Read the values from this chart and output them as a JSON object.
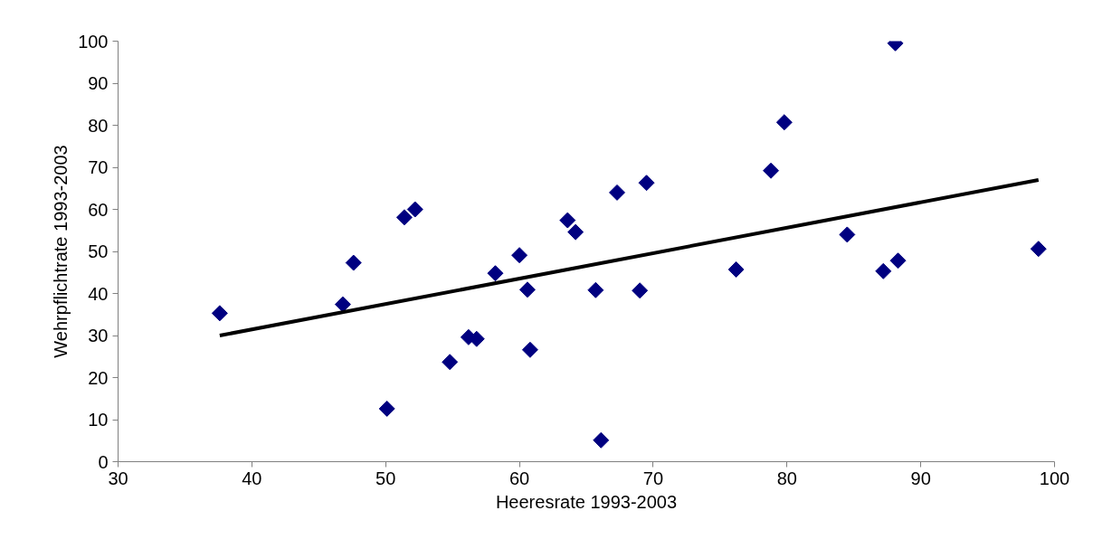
{
  "chart_data": {
    "type": "scatter",
    "xlabel": "Heeresrate 1993-2003",
    "ylabel": "Wehrpflichtrate 1993-2003",
    "xlim": [
      30,
      100
    ],
    "xticks": [
      30,
      40,
      50,
      60,
      70,
      80,
      90,
      100
    ],
    "ylim": [
      0,
      100
    ],
    "yticks": [
      0,
      10,
      20,
      30,
      40,
      50,
      60,
      70,
      80,
      90,
      100
    ],
    "grid": false,
    "series": [
      {
        "marker": "diamond",
        "color": "#000080",
        "x": [
          37.6,
          46.8,
          47.6,
          50.1,
          51.4,
          52.2,
          54.8,
          56.2,
          56.8,
          58.2,
          60.0,
          60.6,
          60.8,
          63.6,
          64.2,
          65.7,
          66.1,
          67.3,
          69.0,
          69.5,
          76.2,
          78.8,
          79.8,
          84.5,
          87.2,
          88.1,
          88.3,
          98.8
        ],
        "values": [
          35.3,
          37.4,
          47.3,
          12.6,
          58.1,
          60.0,
          23.7,
          29.6,
          29.2,
          44.8,
          49.1,
          40.9,
          26.6,
          57.4,
          54.6,
          40.8,
          5.1,
          64.0,
          40.7,
          66.3,
          45.7,
          69.2,
          80.7,
          54.0,
          45.3,
          99.5,
          47.8,
          50.6
        ]
      },
      {
        "type": "line",
        "marker": "none",
        "color": "#000000",
        "x": [
          37.6,
          98.8
        ],
        "values": [
          30.0,
          67.0
        ]
      }
    ]
  }
}
